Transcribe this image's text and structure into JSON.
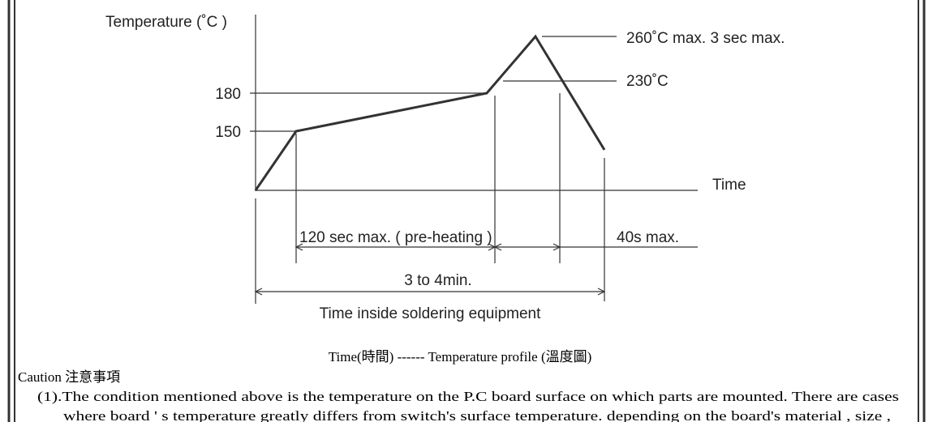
{
  "diagram": {
    "y_axis_label": "Temperature (˚C )",
    "x_axis_label": "Time",
    "y_labels": [
      "180",
      "150"
    ],
    "peak_label": "260˚C max. 3 sec max.",
    "threshold_label": "230˚C",
    "preheat_label": "120 sec max. ( pre-heating )",
    "cooldown_label": "40s max.",
    "total_label": "3 to 4min.",
    "span_label": "Time inside soldering equipment"
  },
  "caption": "Time(時間) ------ Temperature profile (溫度圖)",
  "caution": {
    "heading": "Caution  注意事項",
    "lines": [
      "(1).The condition mentioned above is the temperature on the P.C board surface on which parts are mounted. There are cases",
      "where board ' s temperature greatly differs from switch's surface temperature. depending on the board's material , size ,"
    ]
  }
}
